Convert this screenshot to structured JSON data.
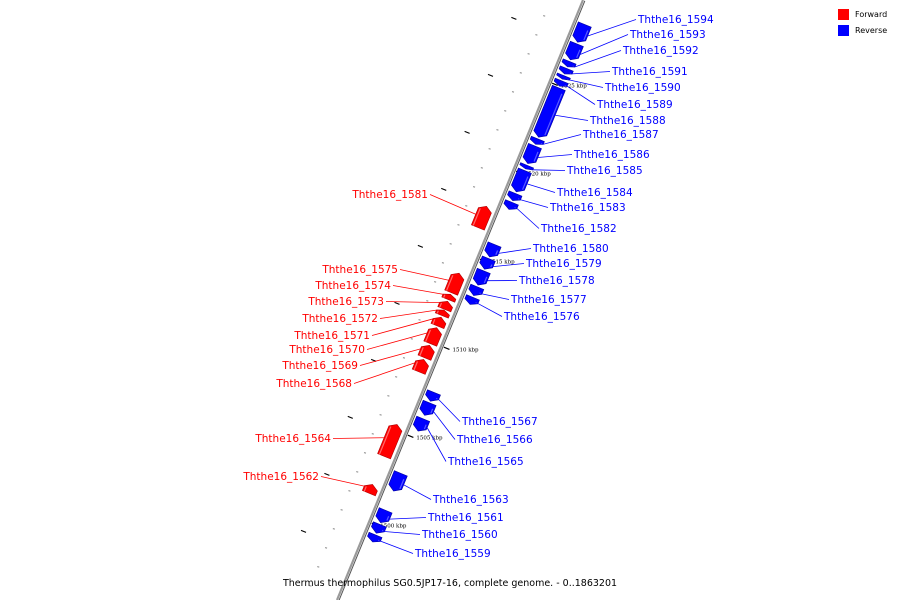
{
  "legend": {
    "forward": {
      "label": "Forward",
      "color": "#ff0000"
    },
    "reverse": {
      "label": "Reverse",
      "color": "#0000ff"
    }
  },
  "caption": "Thermus thermophilus SG0.5JP17-16, complete genome. - 0..1863201",
  "chart_data": {
    "type": "linear-genome-map",
    "range_kbp": [
      1498,
      1529
    ],
    "scale_ticks": [
      {
        "label": "1500 kbp",
        "kbp": 1500
      },
      {
        "label": "1505 kbp",
        "kbp": 1505
      },
      {
        "label": "1510 kbp",
        "kbp": 1510
      },
      {
        "label": "1515 kbp",
        "kbp": 1515
      },
      {
        "label": "1520 kbp",
        "kbp": 1520
      },
      {
        "label": "1525 kbp",
        "kbp": 1525
      }
    ],
    "genes": [
      {
        "name": "Ththe16_1559",
        "strand": "reverse",
        "start": 1499.1,
        "end": 1499.5
      },
      {
        "name": "Ththe16_1560",
        "strand": "reverse",
        "start": 1499.6,
        "end": 1500.1
      },
      {
        "name": "Ththe16_1561",
        "strand": "reverse",
        "start": 1500.2,
        "end": 1500.9
      },
      {
        "name": "Ththe16_1562",
        "strand": "forward",
        "start": 1501.4,
        "end": 1501.9
      },
      {
        "name": "Ththe16_1563",
        "strand": "reverse",
        "start": 1502.0,
        "end": 1503.0
      },
      {
        "name": "Ththe16_1564",
        "strand": "forward",
        "start": 1503.5,
        "end": 1505.3
      },
      {
        "name": "Ththe16_1565",
        "strand": "reverse",
        "start": 1505.4,
        "end": 1506.1
      },
      {
        "name": "Ththe16_1566",
        "strand": "reverse",
        "start": 1506.3,
        "end": 1507.0
      },
      {
        "name": "Ththe16_1567",
        "strand": "reverse",
        "start": 1507.1,
        "end": 1507.6
      },
      {
        "name": "Ththe16_1568",
        "strand": "forward",
        "start": 1508.3,
        "end": 1509.0
      },
      {
        "name": "Ththe16_1569",
        "strand": "forward",
        "start": 1509.1,
        "end": 1509.8
      },
      {
        "name": "Ththe16_1570",
        "strand": "forward",
        "start": 1509.9,
        "end": 1510.8
      },
      {
        "name": "Ththe16_1571",
        "strand": "forward",
        "start": 1510.9,
        "end": 1511.4
      },
      {
        "name": "Ththe16_1572",
        "strand": "forward",
        "start": 1511.5,
        "end": 1511.8
      },
      {
        "name": "Ththe16_1573",
        "strand": "forward",
        "start": 1511.85,
        "end": 1512.3
      },
      {
        "name": "Ththe16_1574",
        "strand": "forward",
        "start": 1512.4,
        "end": 1512.7
      },
      {
        "name": "Ththe16_1575",
        "strand": "forward",
        "start": 1512.8,
        "end": 1513.9
      },
      {
        "name": "Ththe16_1576",
        "strand": "reverse",
        "start": 1512.6,
        "end": 1513.0
      },
      {
        "name": "Ththe16_1577",
        "strand": "reverse",
        "start": 1513.1,
        "end": 1513.6
      },
      {
        "name": "Ththe16_1578",
        "strand": "reverse",
        "start": 1513.7,
        "end": 1514.5
      },
      {
        "name": "Ththe16_1579",
        "strand": "reverse",
        "start": 1514.6,
        "end": 1515.2
      },
      {
        "name": "Ththe16_1580",
        "strand": "reverse",
        "start": 1515.3,
        "end": 1516.0
      },
      {
        "name": "Ththe16_1581",
        "strand": "forward",
        "start": 1516.5,
        "end": 1517.7
      },
      {
        "name": "Ththe16_1582",
        "strand": "reverse",
        "start": 1518.0,
        "end": 1518.4
      },
      {
        "name": "Ththe16_1583",
        "strand": "reverse",
        "start": 1518.5,
        "end": 1518.9
      },
      {
        "name": "Ththe16_1584",
        "strand": "reverse",
        "start": 1519.0,
        "end": 1520.2
      },
      {
        "name": "Ththe16_1585",
        "strand": "reverse",
        "start": 1520.3,
        "end": 1520.5
      },
      {
        "name": "Ththe16_1586",
        "strand": "reverse",
        "start": 1520.6,
        "end": 1521.6
      },
      {
        "name": "Ththe16_1587",
        "strand": "reverse",
        "start": 1521.7,
        "end": 1522.0
      },
      {
        "name": "Ththe16_1588",
        "strand": "reverse",
        "start": 1522.1,
        "end": 1524.9
      },
      {
        "name": "Ththe16_1589",
        "strand": "reverse",
        "start": 1525.0,
        "end": 1525.3
      },
      {
        "name": "Ththe16_1590",
        "strand": "reverse",
        "start": 1525.4,
        "end": 1525.6
      },
      {
        "name": "Ththe16_1591",
        "strand": "reverse",
        "start": 1525.7,
        "end": 1526.0
      },
      {
        "name": "Ththe16_1592",
        "strand": "reverse",
        "start": 1526.1,
        "end": 1526.4
      },
      {
        "name": "Ththe16_1593",
        "strand": "reverse",
        "start": 1526.5,
        "end": 1527.4
      },
      {
        "name": "Ththe16_1594",
        "strand": "reverse",
        "start": 1527.5,
        "end": 1528.5
      }
    ]
  }
}
